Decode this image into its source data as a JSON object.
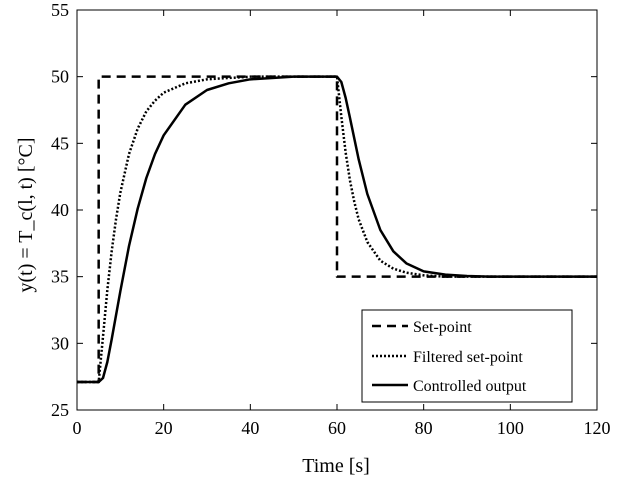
{
  "chart_data": {
    "type": "line",
    "title": "",
    "xlabel": "Time [s]",
    "ylabel": "y(t) = T_c(l, t) [°C]",
    "xlim": [
      0,
      120
    ],
    "ylim": [
      25,
      55
    ],
    "xticks": [
      0,
      20,
      40,
      60,
      80,
      100,
      120
    ],
    "yticks": [
      25,
      30,
      35,
      40,
      45,
      50,
      55
    ],
    "xtick_labels": [
      "0",
      "20",
      "40",
      "60",
      "80",
      "100",
      "120"
    ],
    "ytick_labels": [
      "25",
      "30",
      "35",
      "40",
      "45",
      "50",
      "55"
    ],
    "grid": false,
    "legend_position": "bottom-right",
    "series": [
      {
        "name": "Set-point",
        "style": "dashed",
        "color": "#000000",
        "x": [
          0,
          5,
          5,
          60,
          60,
          120
        ],
        "y": [
          27.1,
          27.1,
          50,
          50,
          35,
          35
        ]
      },
      {
        "name": "Filtered set-point",
        "style": "dotted",
        "color": "#000000",
        "x": [
          0,
          5,
          6,
          7,
          8,
          9,
          10,
          12,
          14,
          16,
          18,
          20,
          25,
          30,
          35,
          40,
          50,
          60,
          61,
          62,
          63,
          64,
          65,
          67,
          70,
          73,
          76,
          80,
          85,
          90,
          100,
          120
        ],
        "y": [
          27.1,
          27.1,
          30.5,
          34.0,
          36.9,
          39.3,
          41.3,
          44.2,
          46.1,
          47.4,
          48.2,
          48.8,
          49.5,
          49.8,
          49.9,
          50.0,
          50.0,
          50.0,
          47.0,
          44.3,
          42.2,
          40.6,
          39.3,
          37.6,
          36.2,
          35.6,
          35.3,
          35.1,
          35.0,
          35.0,
          35.0,
          35.0
        ]
      },
      {
        "name": "Controlled output",
        "style": "solid",
        "color": "#000000",
        "x": [
          0,
          5,
          6,
          7,
          8,
          10,
          12,
          14,
          16,
          18,
          20,
          25,
          30,
          35,
          40,
          45,
          50,
          55,
          60,
          61,
          62,
          63,
          65,
          67,
          70,
          73,
          76,
          80,
          85,
          90,
          95,
          100,
          110,
          120
        ],
        "y": [
          27.1,
          27.1,
          27.4,
          28.6,
          30.3,
          33.9,
          37.3,
          40.1,
          42.4,
          44.2,
          45.6,
          47.9,
          49.0,
          49.5,
          49.8,
          49.9,
          50.0,
          50.0,
          50.0,
          49.6,
          48.4,
          46.9,
          43.8,
          41.2,
          38.5,
          36.9,
          36.0,
          35.4,
          35.15,
          35.05,
          35.0,
          35.0,
          35.0,
          35.0
        ]
      }
    ]
  }
}
